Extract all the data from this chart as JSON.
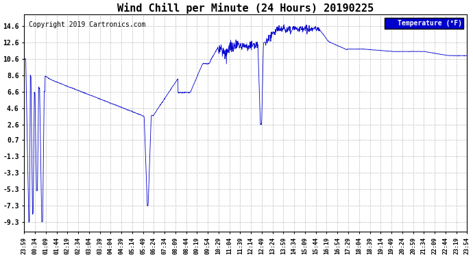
{
  "title": "Wind Chill per Minute (24 Hours) 20190225",
  "copyright_text": "Copyright 2019 Cartronics.com",
  "legend_label": "Temperature (°F)",
  "yticks": [
    14.6,
    12.6,
    10.6,
    8.6,
    6.6,
    4.6,
    2.6,
    0.7,
    -1.3,
    -3.3,
    -5.3,
    -7.3,
    -9.3
  ],
  "ymin": -10.5,
  "ymax": 16.0,
  "line_color": "#0000cc",
  "background_color": "#ffffff",
  "grid_color": "#aaaaaa",
  "title_fontsize": 11,
  "copyright_fontsize": 7,
  "xtick_labels": [
    "23:59",
    "00:34",
    "01:09",
    "01:44",
    "02:19",
    "02:34",
    "03:04",
    "03:39",
    "04:04",
    "04:39",
    "05:14",
    "05:49",
    "06:24",
    "07:34",
    "08:09",
    "08:44",
    "09:19",
    "09:54",
    "10:29",
    "11:04",
    "11:39",
    "12:14",
    "12:49",
    "13:24",
    "13:59",
    "14:34",
    "15:09",
    "15:44",
    "16:19",
    "16:54",
    "17:29",
    "18:04",
    "18:39",
    "19:14",
    "19:49",
    "20:24",
    "20:59",
    "21:34",
    "22:09",
    "22:44",
    "23:19",
    "23:54"
  ],
  "figwidth": 6.9,
  "figheight": 3.75,
  "dpi": 100
}
